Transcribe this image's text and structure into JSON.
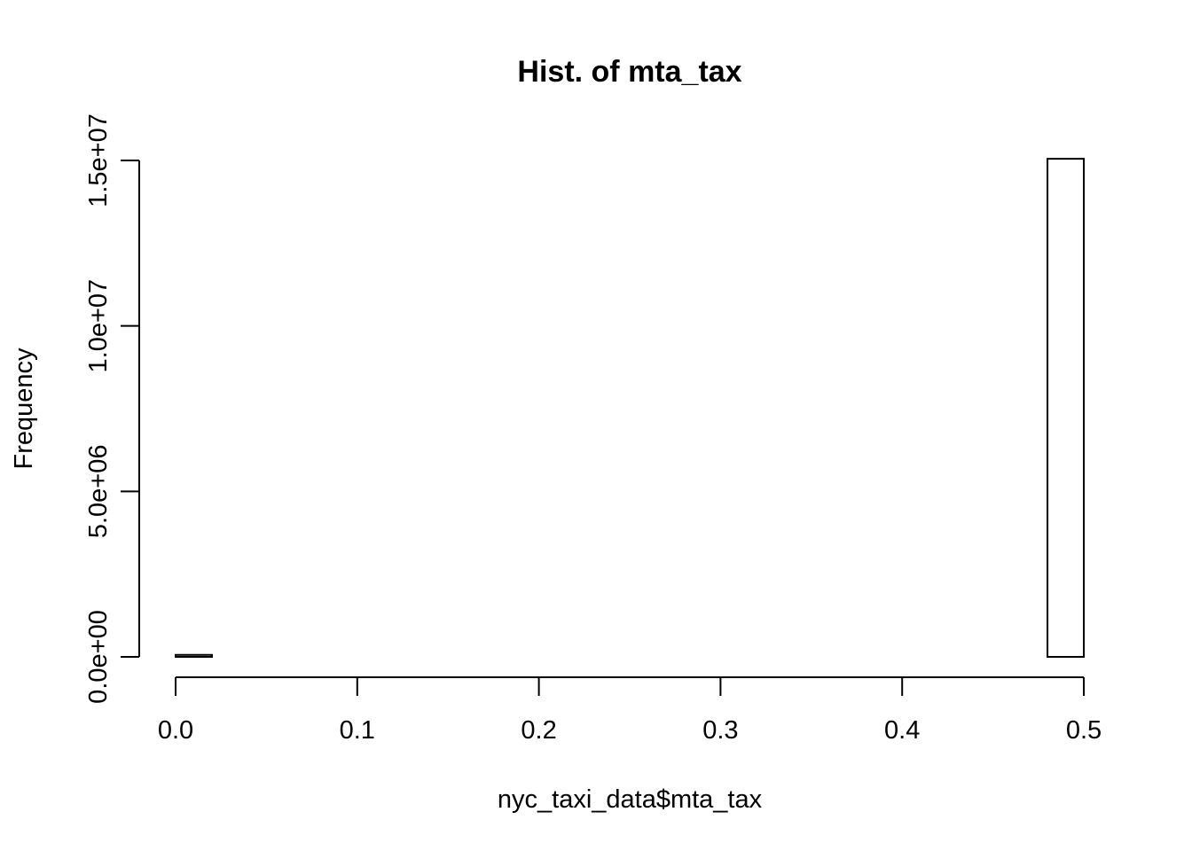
{
  "chart_data": {
    "type": "bar",
    "title": "Hist. of mta_tax",
    "xlabel": "nyc_taxi_data$mta_tax",
    "ylabel": "Frequency",
    "xlim": [
      0.0,
      0.5
    ],
    "ylim": [
      0,
      15000000
    ],
    "x_ticks": [
      "0.0",
      "0.1",
      "0.2",
      "0.3",
      "0.4",
      "0.5"
    ],
    "x_tick_values": [
      0.0,
      0.1,
      0.2,
      0.3,
      0.4,
      0.5
    ],
    "y_ticks": [
      "0.0e+00",
      "5.0e+06",
      "1.0e+07",
      "1.5e+07"
    ],
    "y_tick_values": [
      0,
      5000000,
      10000000,
      15000000
    ],
    "bin_width": 0.02,
    "bins": [
      {
        "start": 0.0,
        "end": 0.02,
        "count": 60000
      },
      {
        "start": 0.02,
        "end": 0.04,
        "count": 0
      },
      {
        "start": 0.04,
        "end": 0.06,
        "count": 0
      },
      {
        "start": 0.06,
        "end": 0.08,
        "count": 0
      },
      {
        "start": 0.08,
        "end": 0.1,
        "count": 0
      },
      {
        "start": 0.1,
        "end": 0.12,
        "count": 0
      },
      {
        "start": 0.12,
        "end": 0.14,
        "count": 0
      },
      {
        "start": 0.14,
        "end": 0.16,
        "count": 0
      },
      {
        "start": 0.16,
        "end": 0.18,
        "count": 0
      },
      {
        "start": 0.18,
        "end": 0.2,
        "count": 0
      },
      {
        "start": 0.2,
        "end": 0.22,
        "count": 0
      },
      {
        "start": 0.22,
        "end": 0.24,
        "count": 0
      },
      {
        "start": 0.24,
        "end": 0.26,
        "count": 0
      },
      {
        "start": 0.26,
        "end": 0.28,
        "count": 0
      },
      {
        "start": 0.28,
        "end": 0.3,
        "count": 0
      },
      {
        "start": 0.3,
        "end": 0.32,
        "count": 0
      },
      {
        "start": 0.32,
        "end": 0.34,
        "count": 0
      },
      {
        "start": 0.34,
        "end": 0.36,
        "count": 0
      },
      {
        "start": 0.36,
        "end": 0.38,
        "count": 0
      },
      {
        "start": 0.38,
        "end": 0.4,
        "count": 0
      },
      {
        "start": 0.4,
        "end": 0.42,
        "count": 0
      },
      {
        "start": 0.42,
        "end": 0.44,
        "count": 0
      },
      {
        "start": 0.44,
        "end": 0.46,
        "count": 0
      },
      {
        "start": 0.46,
        "end": 0.48,
        "count": 0
      },
      {
        "start": 0.48,
        "end": 0.5,
        "count": 15050000
      }
    ],
    "grid": false,
    "colors": {
      "bar_fill": "#ffffff",
      "bar_stroke": "#000000",
      "axis": "#000000",
      "background": "#ffffff"
    }
  }
}
